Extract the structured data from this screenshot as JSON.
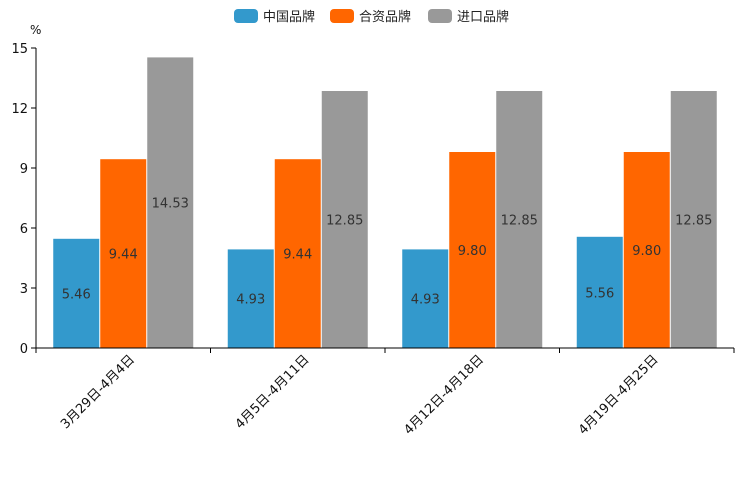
{
  "chart_data": {
    "type": "bar",
    "unit": "%",
    "categories": [
      "3月29日-4月4日",
      "4月5日-4月11日",
      "4月12日-4月18日",
      "4月19日-4月25日"
    ],
    "series": [
      {
        "name": "中国品牌",
        "color": "#3399cc",
        "values": [
          5.46,
          4.93,
          4.93,
          5.56
        ],
        "labels": [
          "5.46",
          "4.93",
          "4.93",
          "5.56"
        ]
      },
      {
        "name": "合资品牌",
        "color": "#ff6600",
        "values": [
          9.44,
          9.44,
          9.8,
          9.8
        ],
        "labels": [
          "9.44",
          "9.44",
          "9.80",
          "9.80"
        ]
      },
      {
        "name": "进口品牌",
        "color": "#999999",
        "values": [
          14.53,
          12.85,
          12.85,
          12.85
        ],
        "labels": [
          "14.53",
          "12.85",
          "12.85",
          "12.85"
        ]
      }
    ],
    "ylim": [
      0,
      15
    ],
    "yticks": [
      "0",
      "3",
      "6",
      "9",
      "12",
      "15"
    ],
    "legend_position": "top-center",
    "grid": false
  }
}
